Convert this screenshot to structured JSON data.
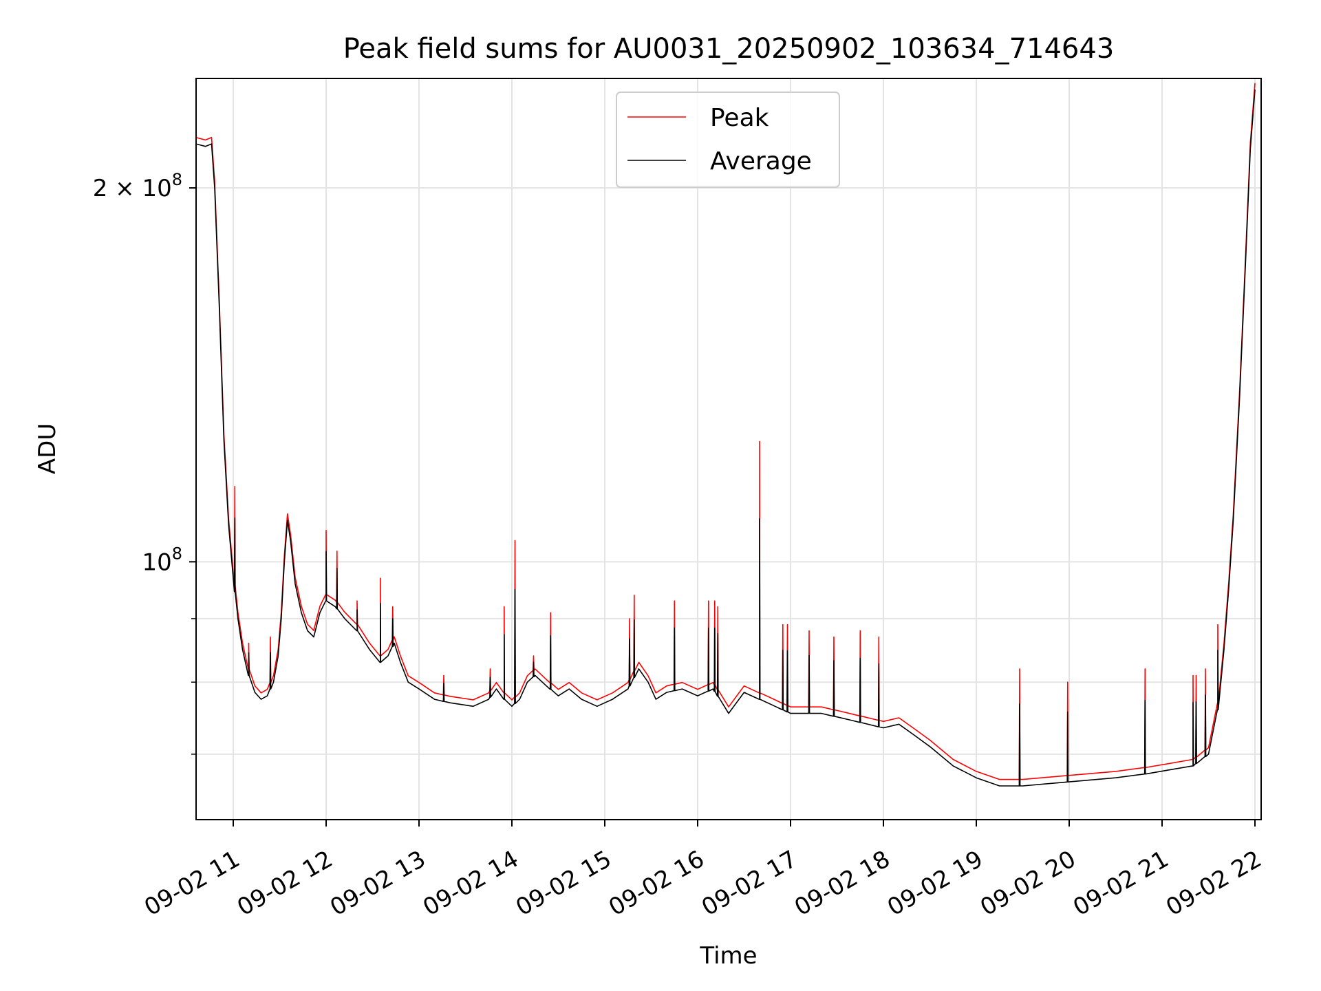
{
  "chart_data": {
    "type": "line",
    "title": "Peak field sums for AU0031_20250902_103634_714643",
    "xlabel": "Time",
    "ylabel": "ADU",
    "y_scale": "log",
    "ylim": [
      62000000,
      245000000
    ],
    "xlim": [
      "2025-09-02T10:36",
      "2025-09-02T22:04"
    ],
    "grid": true,
    "legend": {
      "placement": "top-center"
    },
    "x_ticks": [
      {
        "t": "2025-09-02T11:00",
        "label": "09-02 11"
      },
      {
        "t": "2025-09-02T12:00",
        "label": "09-02 12"
      },
      {
        "t": "2025-09-02T13:00",
        "label": "09-02 13"
      },
      {
        "t": "2025-09-02T14:00",
        "label": "09-02 14"
      },
      {
        "t": "2025-09-02T15:00",
        "label": "09-02 15"
      },
      {
        "t": "2025-09-02T16:00",
        "label": "09-02 16"
      },
      {
        "t": "2025-09-02T17:00",
        "label": "09-02 17"
      },
      {
        "t": "2025-09-02T18:00",
        "label": "09-02 18"
      },
      {
        "t": "2025-09-02T19:00",
        "label": "09-02 19"
      },
      {
        "t": "2025-09-02T20:00",
        "label": "09-02 20"
      },
      {
        "t": "2025-09-02T21:00",
        "label": "09-02 21"
      },
      {
        "t": "2025-09-02T22:00",
        "label": "09-02 22"
      }
    ],
    "y_major_ticks": [
      {
        "value": 100000000,
        "base": "10",
        "exp": "8",
        "prefix": ""
      },
      {
        "value": 200000000,
        "base": "10",
        "exp": "8",
        "prefix": "2 × "
      }
    ],
    "y_minor_ticks": [
      70000000,
      80000000,
      90000000
    ],
    "series": [
      {
        "name": "Average",
        "color": "#000000",
        "points": [
          [
            "2025-09-02T10:36",
            217000000
          ],
          [
            "2025-09-02T10:42",
            216000000
          ],
          [
            "2025-09-02T10:46",
            217000000
          ],
          [
            "2025-09-02T10:48",
            200000000
          ],
          [
            "2025-09-02T10:51",
            160000000
          ],
          [
            "2025-09-02T10:54",
            125000000
          ],
          [
            "2025-09-02T10:57",
            107000000
          ],
          [
            "2025-09-02T11:00",
            97000000
          ],
          [
            "2025-09-02T11:03",
            90000000
          ],
          [
            "2025-09-02T11:06",
            85000000
          ],
          [
            "2025-09-02T11:10",
            81000000
          ],
          [
            "2025-09-02T11:14",
            78500000
          ],
          [
            "2025-09-02T11:18",
            77500000
          ],
          [
            "2025-09-02T11:22",
            78000000
          ],
          [
            "2025-09-02T11:26",
            80000000
          ],
          [
            "2025-09-02T11:29",
            84000000
          ],
          [
            "2025-09-02T11:31",
            90000000
          ],
          [
            "2025-09-02T11:33",
            100000000
          ],
          [
            "2025-09-02T11:35",
            108000000
          ],
          [
            "2025-09-02T11:37",
            104000000
          ],
          [
            "2025-09-02T11:40",
            96000000
          ],
          [
            "2025-09-02T11:44",
            91000000
          ],
          [
            "2025-09-02T11:48",
            88000000
          ],
          [
            "2025-09-02T11:52",
            87000000
          ],
          [
            "2025-09-02T11:56",
            91000000
          ],
          [
            "2025-09-02T12:00",
            93000000
          ],
          [
            "2025-09-02T12:06",
            92000000
          ],
          [
            "2025-09-02T12:12",
            90000000
          ],
          [
            "2025-09-02T12:20",
            88000000
          ],
          [
            "2025-09-02T12:28",
            85000000
          ],
          [
            "2025-09-02T12:35",
            83000000
          ],
          [
            "2025-09-02T12:40",
            84000000
          ],
          [
            "2025-09-02T12:44",
            86000000
          ],
          [
            "2025-09-02T12:48",
            83000000
          ],
          [
            "2025-09-02T12:53",
            80000000
          ],
          [
            "2025-09-02T13:00",
            79000000
          ],
          [
            "2025-09-02T13:10",
            77500000
          ],
          [
            "2025-09-02T13:20",
            77000000
          ],
          [
            "2025-09-02T13:35",
            76500000
          ],
          [
            "2025-09-02T13:45",
            77500000
          ],
          [
            "2025-09-02T13:50",
            79000000
          ],
          [
            "2025-09-02T13:55",
            77500000
          ],
          [
            "2025-09-02T14:00",
            76500000
          ],
          [
            "2025-09-02T14:05",
            77500000
          ],
          [
            "2025-09-02T14:10",
            80000000
          ],
          [
            "2025-09-02T14:15",
            81000000
          ],
          [
            "2025-09-02T14:22",
            79500000
          ],
          [
            "2025-09-02T14:30",
            78000000
          ],
          [
            "2025-09-02T14:37",
            79000000
          ],
          [
            "2025-09-02T14:45",
            77500000
          ],
          [
            "2025-09-02T14:55",
            76500000
          ],
          [
            "2025-09-02T15:05",
            77500000
          ],
          [
            "2025-09-02T15:15",
            79000000
          ],
          [
            "2025-09-02T15:22",
            82000000
          ],
          [
            "2025-09-02T15:28",
            80000000
          ],
          [
            "2025-09-02T15:33",
            77500000
          ],
          [
            "2025-09-02T15:40",
            78500000
          ],
          [
            "2025-09-02T15:50",
            79000000
          ],
          [
            "2025-09-02T16:00",
            78000000
          ],
          [
            "2025-09-02T16:10",
            79000000
          ],
          [
            "2025-09-02T16:20",
            75500000
          ],
          [
            "2025-09-02T16:30",
            78500000
          ],
          [
            "2025-09-02T16:40",
            77500000
          ],
          [
            "2025-09-02T16:50",
            76500000
          ],
          [
            "2025-09-02T17:00",
            75500000
          ],
          [
            "2025-09-02T17:20",
            75500000
          ],
          [
            "2025-09-02T17:40",
            74500000
          ],
          [
            "2025-09-02T18:00",
            73500000
          ],
          [
            "2025-09-02T18:10",
            74000000
          ],
          [
            "2025-09-02T18:20",
            72500000
          ],
          [
            "2025-09-02T18:30",
            71000000
          ],
          [
            "2025-09-02T18:45",
            68500000
          ],
          [
            "2025-09-02T19:00",
            67000000
          ],
          [
            "2025-09-02T19:15",
            66000000
          ],
          [
            "2025-09-02T19:30",
            66000000
          ],
          [
            "2025-09-02T20:00",
            66500000
          ],
          [
            "2025-09-02T20:30",
            67000000
          ],
          [
            "2025-09-02T20:50",
            67500000
          ],
          [
            "2025-09-02T21:05",
            68000000
          ],
          [
            "2025-09-02T21:20",
            68500000
          ],
          [
            "2025-09-02T21:30",
            70000000
          ],
          [
            "2025-09-02T21:36",
            76000000
          ],
          [
            "2025-09-02T21:40",
            85000000
          ],
          [
            "2025-09-02T21:43",
            95000000
          ],
          [
            "2025-09-02T21:46",
            108000000
          ],
          [
            "2025-09-02T21:50",
            135000000
          ],
          [
            "2025-09-02T21:54",
            175000000
          ],
          [
            "2025-09-02T21:57",
            215000000
          ],
          [
            "2025-09-02T22:00",
            240000000
          ]
        ]
      },
      {
        "name": "Peak",
        "color": "#ff0000",
        "offset_ratio": 1.012,
        "spikes": [
          [
            "2025-09-02T11:01",
            115000000
          ],
          [
            "2025-09-02T11:10",
            86000000
          ],
          [
            "2025-09-02T11:24",
            87000000
          ],
          [
            "2025-09-02T12:00",
            106000000
          ],
          [
            "2025-09-02T12:07",
            102000000
          ],
          [
            "2025-09-02T12:20",
            93000000
          ],
          [
            "2025-09-02T12:35",
            97000000
          ],
          [
            "2025-09-02T12:43",
            92000000
          ],
          [
            "2025-09-02T13:16",
            81000000
          ],
          [
            "2025-09-02T13:46",
            82000000
          ],
          [
            "2025-09-02T13:55",
            92000000
          ],
          [
            "2025-09-02T14:02",
            104000000
          ],
          [
            "2025-09-02T14:14",
            84000000
          ],
          [
            "2025-09-02T14:25",
            91000000
          ],
          [
            "2025-09-02T15:16",
            90000000
          ],
          [
            "2025-09-02T15:19",
            94000000
          ],
          [
            "2025-09-02T15:45",
            93000000
          ],
          [
            "2025-09-02T16:07",
            93000000
          ],
          [
            "2025-09-02T16:11",
            93000000
          ],
          [
            "2025-09-02T16:13",
            92000000
          ],
          [
            "2025-09-02T16:40",
            125000000
          ],
          [
            "2025-09-02T16:55",
            89000000
          ],
          [
            "2025-09-02T16:58",
            89000000
          ],
          [
            "2025-09-02T17:12",
            88000000
          ],
          [
            "2025-09-02T17:28",
            87000000
          ],
          [
            "2025-09-02T17:45",
            88000000
          ],
          [
            "2025-09-02T17:57",
            87000000
          ],
          [
            "2025-09-02T19:28",
            82000000
          ],
          [
            "2025-09-02T19:59",
            80000000
          ],
          [
            "2025-09-02T20:49",
            82000000
          ],
          [
            "2025-09-02T21:20",
            81000000
          ],
          [
            "2025-09-02T21:22",
            81000000
          ],
          [
            "2025-09-02T21:28",
            82000000
          ],
          [
            "2025-09-02T21:36",
            89000000
          ]
        ]
      }
    ]
  }
}
